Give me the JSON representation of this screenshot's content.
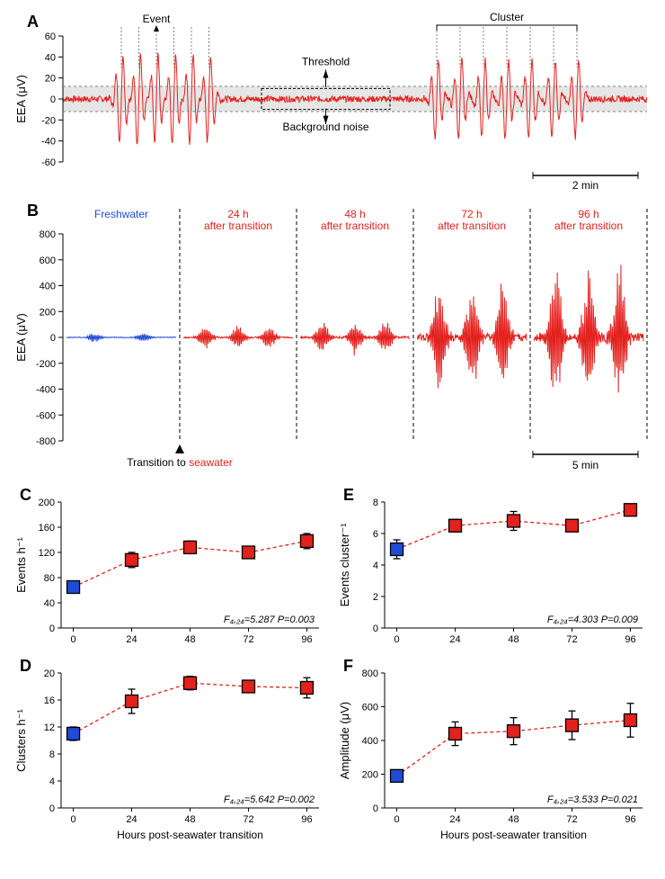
{
  "colors": {
    "red": "#e3211d",
    "blue": "#1f4bd8",
    "black": "#000000",
    "grey_band": "#e6e6e6",
    "grey_dash": "#808080"
  },
  "panelA": {
    "label": "A",
    "ylabel": "EEA (μV)",
    "ylim": [
      -60,
      60
    ],
    "yticks": [
      -60,
      -40,
      -20,
      0,
      20,
      40,
      60
    ],
    "event_label": "Event",
    "cluster_label": "Cluster",
    "threshold_label": "Threshold",
    "noise_label": "Background noise",
    "scalebar_label": "2 min",
    "threshold_band": 12,
    "trace_color": "#e3211d"
  },
  "panelB": {
    "label": "B",
    "ylabel": "EEA (μV)",
    "ylim": [
      -800,
      800
    ],
    "yticks": [
      -800,
      -600,
      -400,
      -200,
      0,
      200,
      400,
      600,
      800
    ],
    "segments": [
      {
        "title": "Freshwater",
        "color": "#1f4bd8",
        "amplitude": 35
      },
      {
        "title": "24 h\nafter transition",
        "color": "#e3211d",
        "amplitude": 80
      },
      {
        "title": "48 h\nafter transition",
        "color": "#e3211d",
        "amplitude": 120
      },
      {
        "title": "72 h\nafter transition",
        "color": "#e3211d",
        "amplitude": 400
      },
      {
        "title": "96 h\nafter transition",
        "color": "#e3211d",
        "amplitude": 500
      }
    ],
    "transition_label": "Transition to seawater",
    "seawater_word": "seawater",
    "scalebar_label": "5 min"
  },
  "panelC": {
    "label": "C",
    "ylabel": "Events h⁻¹",
    "ylim": [
      0,
      200
    ],
    "ytick_step": 40,
    "xvals": [
      0,
      24,
      48,
      72,
      96
    ],
    "points": [
      {
        "x": 0,
        "y": 65,
        "err": 8,
        "color": "#1f4bd8"
      },
      {
        "x": 24,
        "y": 108,
        "err": 12,
        "color": "#e3211d"
      },
      {
        "x": 48,
        "y": 128,
        "err": 10,
        "color": "#e3211d"
      },
      {
        "x": 72,
        "y": 120,
        "err": 8,
        "color": "#e3211d"
      },
      {
        "x": 96,
        "y": 138,
        "err": 12,
        "color": "#e3211d"
      }
    ],
    "stat": "F₄,₂₄=5.287  P=0.003",
    "line_color": "#e3211d"
  },
  "panelD": {
    "label": "D",
    "ylabel": "Clusters h⁻¹",
    "ylim": [
      0,
      20
    ],
    "ytick_step": 4,
    "xvals": [
      0,
      24,
      48,
      72,
      96
    ],
    "points": [
      {
        "x": 0,
        "y": 11,
        "err": 1.0,
        "color": "#1f4bd8"
      },
      {
        "x": 24,
        "y": 15.8,
        "err": 1.8,
        "color": "#e3211d"
      },
      {
        "x": 48,
        "y": 18.5,
        "err": 1.0,
        "color": "#e3211d"
      },
      {
        "x": 72,
        "y": 18,
        "err": 0.8,
        "color": "#e3211d"
      },
      {
        "x": 96,
        "y": 17.8,
        "err": 1.5,
        "color": "#e3211d"
      }
    ],
    "stat": "F₄,₂₄=5.642  P=0.002",
    "xlabel": "Hours post-seawater transition",
    "line_color": "#e3211d"
  },
  "panelE": {
    "label": "E",
    "ylabel": "Events cluster⁻¹",
    "ylim": [
      0,
      8
    ],
    "ytick_step": 2,
    "xvals": [
      0,
      24,
      48,
      72,
      96
    ],
    "points": [
      {
        "x": 0,
        "y": 5.0,
        "err": 0.6,
        "color": "#1f4bd8"
      },
      {
        "x": 24,
        "y": 6.5,
        "err": 0.4,
        "color": "#e3211d"
      },
      {
        "x": 48,
        "y": 6.8,
        "err": 0.6,
        "color": "#e3211d"
      },
      {
        "x": 72,
        "y": 6.5,
        "err": 0.3,
        "color": "#e3211d"
      },
      {
        "x": 96,
        "y": 7.5,
        "err": 0.3,
        "color": "#e3211d"
      }
    ],
    "stat": "F₄,₂₄=4.303  P=0.009",
    "line_color": "#e3211d"
  },
  "panelF": {
    "label": "F",
    "ylabel": "Amplitude (μV)",
    "ylim": [
      0,
      800
    ],
    "ytick_step": 200,
    "xvals": [
      0,
      24,
      48,
      72,
      96
    ],
    "points": [
      {
        "x": 0,
        "y": 190,
        "err": 30,
        "color": "#1f4bd8"
      },
      {
        "x": 24,
        "y": 440,
        "err": 70,
        "color": "#e3211d"
      },
      {
        "x": 48,
        "y": 455,
        "err": 80,
        "color": "#e3211d"
      },
      {
        "x": 72,
        "y": 490,
        "err": 85,
        "color": "#e3211d"
      },
      {
        "x": 96,
        "y": 520,
        "err": 100,
        "color": "#e3211d"
      }
    ],
    "stat": "F₄,₂₄=3.533  P=0.021",
    "xlabel": "Hours post-seawater transition",
    "line_color": "#e3211d"
  }
}
